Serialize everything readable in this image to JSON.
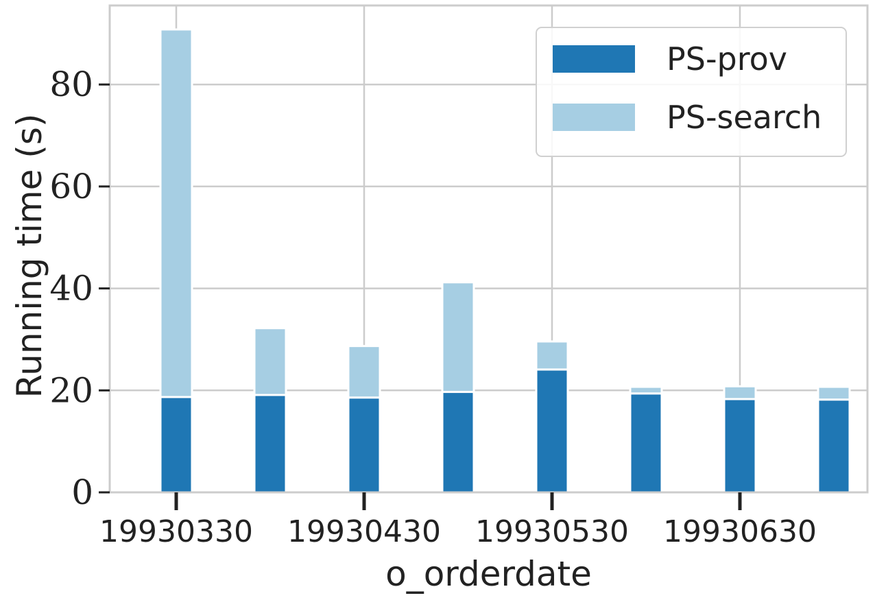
{
  "chart_data": {
    "type": "bar",
    "stacked": true,
    "xlabel": "o_orderdate",
    "ylabel": "Running time (s)",
    "ylim": [
      0,
      95.5
    ],
    "yticks": [
      0,
      20,
      40,
      60,
      80
    ],
    "x_tick_labels": [
      "19930330",
      "19930430",
      "19930530",
      "19930630"
    ],
    "x_tick_bar_index": [
      0,
      2,
      4,
      6
    ],
    "bar_count": 8,
    "grid": true,
    "legend_position": "top-right",
    "series": [
      {
        "name": "PS-prov",
        "color": "#1f77b4",
        "values": [
          18.7,
          19.1,
          18.6,
          19.7,
          24.1,
          19.4,
          18.3,
          18.2
        ]
      },
      {
        "name": "PS-search",
        "color": "#a6cee3",
        "values": [
          72.1,
          13.1,
          10.1,
          21.5,
          5.5,
          1.3,
          2.5,
          2.5
        ]
      }
    ]
  }
}
